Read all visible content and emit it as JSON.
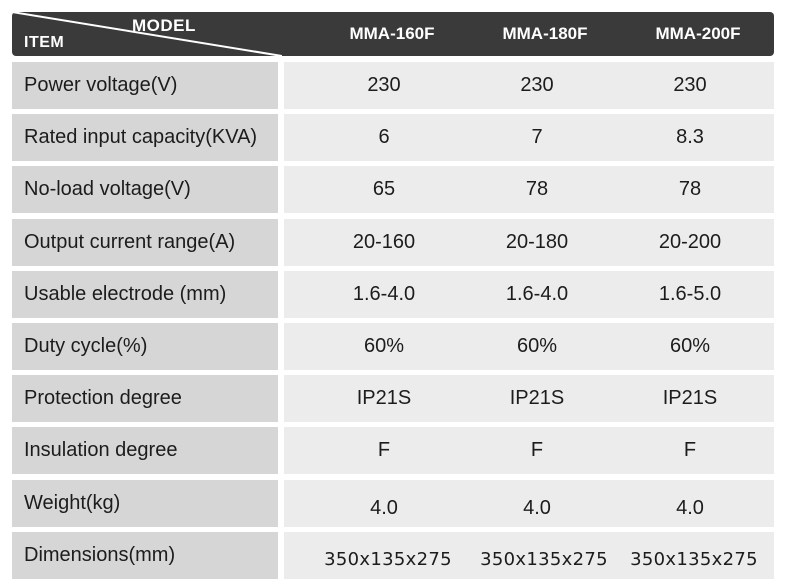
{
  "header": {
    "model_label": "MODEL",
    "item_label": "ITEM",
    "models": [
      "MMA-160F",
      "MMA-180F",
      "MMA-200F"
    ]
  },
  "rows": [
    {
      "label": "Power voltage(V)",
      "values": [
        "230",
        "230",
        "230"
      ]
    },
    {
      "label": "Rated input capacity(KVA)",
      "values": [
        "6",
        "7",
        "8.3"
      ]
    },
    {
      "label": "No-load voltage(V)",
      "values": [
        "65",
        "78",
        "78"
      ]
    },
    {
      "label": "Output current range(A)",
      "values": [
        "20-160",
        "20-180",
        "20-200"
      ]
    },
    {
      "label": "Usable electrode (mm)",
      "values": [
        "1.6-4.0",
        "1.6-4.0",
        "1.6-5.0"
      ]
    },
    {
      "label": "Duty cycle(%)",
      "values": [
        "60%",
        "60%",
        "60%"
      ]
    },
    {
      "label": "Protection degree",
      "values": [
        "IP21S",
        "IP21S",
        "IP21S"
      ]
    },
    {
      "label": "Insulation degree",
      "values": [
        "F",
        "F",
        "F"
      ]
    },
    {
      "label": "Weight(kg)",
      "values": [
        "4.0",
        "4.0",
        "4.0"
      ]
    },
    {
      "label": "Dimensions(mm)",
      "values": [
        "350x135x275",
        "350x135x275",
        "350x135x275"
      ]
    }
  ],
  "colors": {
    "header_bg": "#3a3a3a",
    "label_cell_bg": "#d6d6d6",
    "value_cell_bg": "#ececec",
    "header_text": "#ffffff"
  }
}
